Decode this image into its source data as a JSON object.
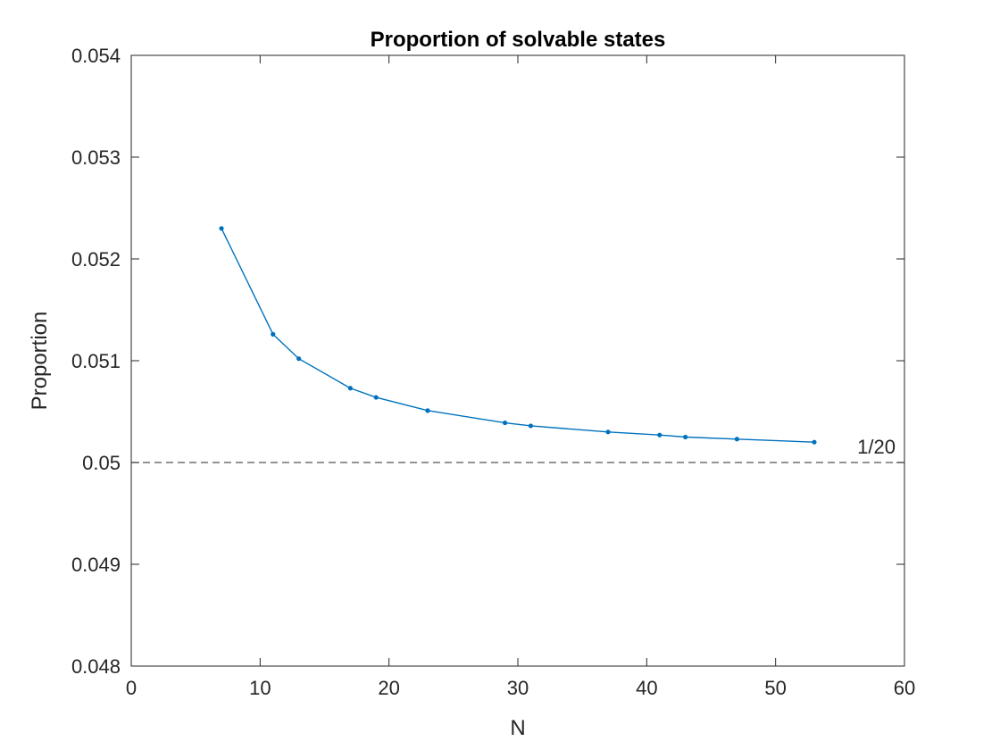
{
  "chart_data": {
    "type": "line",
    "title": "Proportion of solvable states",
    "xlabel": "N",
    "ylabel": "Proportion",
    "xlim": [
      0,
      60
    ],
    "ylim": [
      0.048,
      0.054
    ],
    "xticks": [
      0,
      10,
      20,
      30,
      40,
      50,
      60
    ],
    "yticks": [
      0.048,
      0.049,
      0.05,
      0.051,
      0.052,
      0.053,
      0.054
    ],
    "xtick_labels": [
      "0",
      "10",
      "20",
      "30",
      "40",
      "50",
      "60"
    ],
    "ytick_labels": [
      "0.048",
      "0.049",
      "0.05",
      "0.051",
      "0.052",
      "0.053",
      "0.054"
    ],
    "grid": false,
    "series": [
      {
        "x": [
          7,
          11,
          13,
          17,
          19,
          23,
          29,
          31,
          37,
          41,
          43,
          47,
          53
        ],
        "y": [
          0.0523,
          0.05126,
          0.05102,
          0.05073,
          0.05064,
          0.05051,
          0.05039,
          0.05036,
          0.0503,
          0.05027,
          0.05025,
          0.05023,
          0.0502
        ],
        "color": "#0072BD",
        "marker": "dot"
      }
    ],
    "reference_line": {
      "y": 0.05,
      "style": "dashed",
      "color": "#555555",
      "label": "1/20"
    }
  }
}
